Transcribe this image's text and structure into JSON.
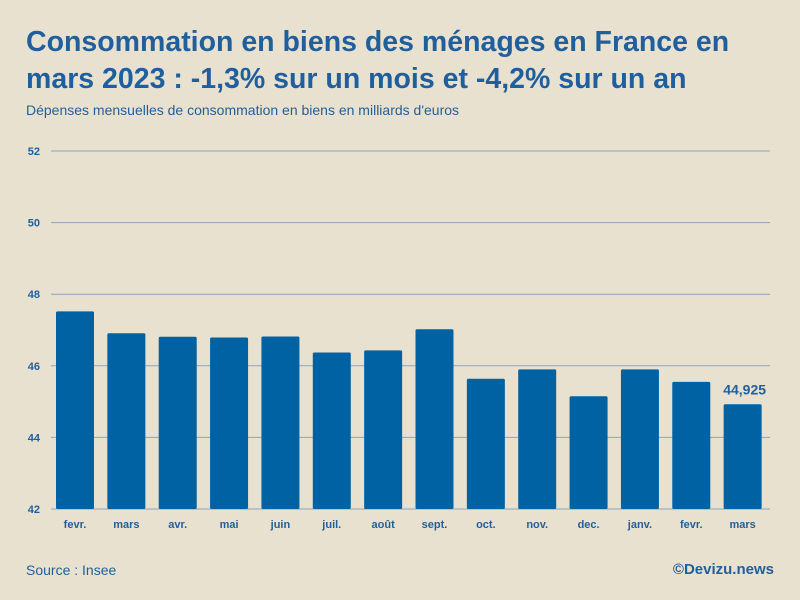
{
  "chart_data": {
    "type": "bar",
    "title": "Consommation en biens des ménages en France en mars 2023 : -1,3% sur un mois et -4,2% sur un an",
    "subtitle": "Dépenses mensuelles de consommation en biens en milliards d'euros",
    "xlabel": "",
    "ylabel": "",
    "ylim": [
      42,
      52
    ],
    "yticks": [
      "42",
      "44",
      "46",
      "48",
      "50",
      "52"
    ],
    "grid": true,
    "categories": [
      "fevr.",
      "mars",
      "avr.",
      "mai",
      "juin",
      "juil.",
      "août",
      "sept.",
      "oct.",
      "nov.",
      "dec.",
      "janv.",
      "fevr.",
      "mars"
    ],
    "values": [
      47.52,
      46.91,
      46.81,
      46.79,
      46.82,
      46.37,
      46.43,
      47.02,
      45.64,
      45.9,
      45.15,
      45.9,
      45.55,
      44.925
    ],
    "data_labels": [
      {
        "index": 13,
        "text": "44,925"
      }
    ],
    "bar_color": "#0062a3",
    "grid_color": "#8fa4b8"
  },
  "footer": {
    "source": "Source : Insee",
    "credit": "©Devizu.news"
  }
}
